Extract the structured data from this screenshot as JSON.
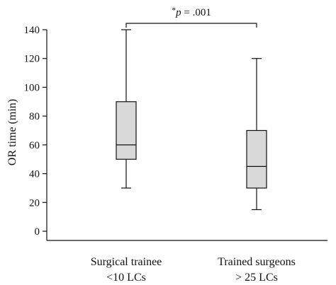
{
  "chart_data": {
    "type": "box",
    "ylabel": "OR time (min)",
    "xlabel": "",
    "ylim": [
      0,
      140
    ],
    "yticks": [
      "0",
      "20",
      "40",
      "60",
      "80",
      "100",
      "120",
      "140"
    ],
    "categories": [
      {
        "line1": "Surgical trainee",
        "line2": "<10 LCs"
      },
      {
        "line1": "Trained surgeons",
        "line2": "> 25 LCs"
      }
    ],
    "boxes": [
      {
        "min": 30,
        "q1": 50,
        "median": 60,
        "q3": 90,
        "max": 140
      },
      {
        "min": 15,
        "q1": 30,
        "median": 45,
        "q3": 70,
        "max": 120
      }
    ],
    "annotation": {
      "star": "*",
      "p": "p",
      "rest": " = .001"
    },
    "box_fill": "#d9d9d9",
    "line_color": "#111111",
    "grid": false
  }
}
